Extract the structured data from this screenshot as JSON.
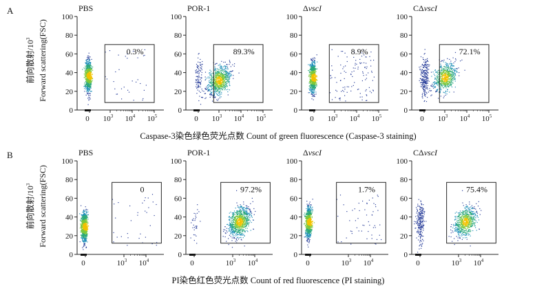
{
  "figure": {
    "rows": [
      {
        "label": "A",
        "xlabel": "Caspase-3染色绿色荧光点数 Count of green fluorescence (Caspase-3 staining)",
        "ylabel": "前向散射/10",
        "ylabel_sup": "3",
        "ylabel_en": "Forward scattering(FSC)"
      },
      {
        "label": "B",
        "xlabel": "PI染色红色荧光点数 Count of red fluorescence (PI staining)",
        "ylabel": "前向散射/10",
        "ylabel_sup": "3",
        "ylabel_en": "Forward scattering(FSC)"
      }
    ]
  },
  "chart_data": [
    {
      "type": "scatter",
      "row": "A",
      "title_prefix": "PBS",
      "title_italic": "",
      "percent": "0.3%",
      "gated_fraction": 0.003,
      "ylim": [
        0,
        100
      ],
      "yticks": [
        "0",
        "20",
        "40",
        "60",
        "80",
        "100"
      ],
      "xticks": [
        "0",
        "10",
        "10",
        "10"
      ],
      "xsup": [
        "",
        "3",
        "4",
        "5"
      ],
      "center": {
        "x": 0,
        "y": 37
      },
      "gate": {
        "x": [
          300,
          100000
        ],
        "y": [
          8,
          70
        ]
      }
    },
    {
      "type": "scatter",
      "row": "A",
      "title_prefix": "POR-1",
      "title_italic": "",
      "percent": "89.3%",
      "gated_fraction": 0.893,
      "ylim": [
        0,
        100
      ],
      "yticks": [
        "0",
        "20",
        "40",
        "60",
        "80",
        "100"
      ],
      "xticks": [
        "0",
        "10",
        "10",
        "10"
      ],
      "xsup": [
        "",
        "3",
        "4",
        "5"
      ],
      "center": {
        "x": 1000,
        "y": 32
      },
      "gate": {
        "x": [
          300,
          100000
        ],
        "y": [
          8,
          70
        ]
      }
    },
    {
      "type": "scatter",
      "row": "A",
      "title_prefix": "Δ",
      "title_italic": "vscI",
      "percent": "8.9%",
      "gated_fraction": 0.089,
      "ylim": [
        0,
        100
      ],
      "yticks": [
        "0",
        "20",
        "40",
        "60",
        "80",
        "100"
      ],
      "xticks": [
        "0",
        "10",
        "10",
        "10"
      ],
      "xsup": [
        "",
        "3",
        "4",
        "5"
      ],
      "center": {
        "x": 0,
        "y": 35
      },
      "gate": {
        "x": [
          300,
          100000
        ],
        "y": [
          8,
          70
        ]
      }
    },
    {
      "type": "scatter",
      "row": "A",
      "title_prefix": "CΔ",
      "title_italic": "vscI",
      "percent": "72.1%",
      "gated_fraction": 0.721,
      "ylim": [
        0,
        100
      ],
      "yticks": [
        "0",
        "20",
        "40",
        "60",
        "80",
        "100"
      ],
      "xticks": [
        "0",
        "10",
        "10",
        "10"
      ],
      "xsup": [
        "",
        "3",
        "4",
        "5"
      ],
      "center": {
        "x": 1000,
        "y": 35
      },
      "gate": {
        "x": [
          300,
          100000
        ],
        "y": [
          8,
          70
        ]
      }
    },
    {
      "type": "scatter",
      "row": "B",
      "title_prefix": "PBS",
      "title_italic": "",
      "percent": "0",
      "gated_fraction": 0.0,
      "ylim": [
        0,
        100
      ],
      "yticks": [
        "0",
        "20",
        "40",
        "60",
        "80",
        "100"
      ],
      "xticks": [
        "0",
        "10",
        "10"
      ],
      "xsup": [
        "",
        "3",
        "4"
      ],
      "center": {
        "x": 0,
        "y": 30
      },
      "gate": {
        "x": [
          200,
          50000
        ],
        "y": [
          12,
          77
        ]
      }
    },
    {
      "type": "scatter",
      "row": "B",
      "title_prefix": "POR-1",
      "title_italic": "",
      "percent": "97.2%",
      "gated_fraction": 0.972,
      "ylim": [
        0,
        100
      ],
      "yticks": [
        "0",
        "20",
        "40",
        "60",
        "80",
        "100"
      ],
      "xticks": [
        "0",
        "10",
        "10"
      ],
      "xsup": [
        "",
        "3",
        "4"
      ],
      "center": {
        "x": 2000,
        "y": 35
      },
      "gate": {
        "x": [
          200,
          50000
        ],
        "y": [
          12,
          77
        ]
      }
    },
    {
      "type": "scatter",
      "row": "B",
      "title_prefix": "Δ",
      "title_italic": "vscI",
      "percent": "1.7%",
      "gated_fraction": 0.017,
      "ylim": [
        0,
        100
      ],
      "yticks": [
        "0",
        "20",
        "40",
        "60",
        "80",
        "100"
      ],
      "xticks": [
        "0",
        "10",
        "10"
      ],
      "xsup": [
        "",
        "3",
        "4"
      ],
      "center": {
        "x": 0,
        "y": 35
      },
      "gate": {
        "x": [
          200,
          50000
        ],
        "y": [
          12,
          77
        ]
      }
    },
    {
      "type": "scatter",
      "row": "B",
      "title_prefix": "CΔ",
      "title_italic": "vscI",
      "percent": "75.4%",
      "gated_fraction": 0.754,
      "ylim": [
        0,
        100
      ],
      "yticks": [
        "0",
        "20",
        "40",
        "60",
        "80",
        "100"
      ],
      "xticks": [
        "0",
        "10",
        "10"
      ],
      "xsup": [
        "",
        "3",
        "4"
      ],
      "center": {
        "x": 2000,
        "y": 35
      },
      "gate": {
        "x": [
          200,
          50000
        ],
        "y": [
          12,
          77
        ]
      }
    }
  ]
}
